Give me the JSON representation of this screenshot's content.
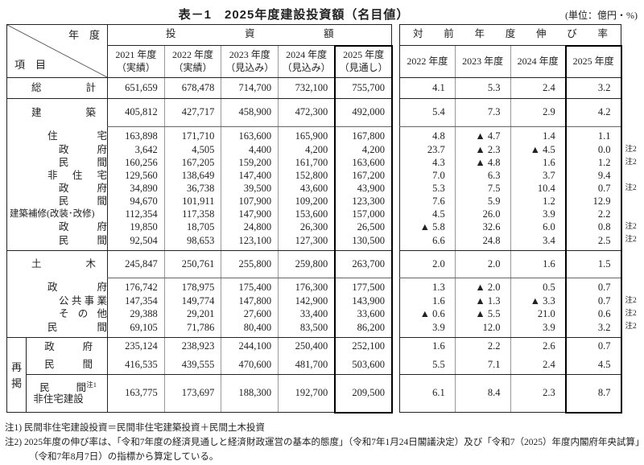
{
  "title": "表－1　2025年度建設投資額（名目値）",
  "unit_note": "(単位：億円・%)",
  "corner": {
    "top_right": "年　度",
    "bottom_left": "項　目"
  },
  "investment_table": {
    "span_header": "投資額",
    "columns": [
      {
        "year": "2021 年度",
        "status": "（実績）"
      },
      {
        "year": "2022 年度",
        "status": "（実績）"
      },
      {
        "year": "2023 年度",
        "status": "（見込み）"
      },
      {
        "year": "2024 年度",
        "status": "（見込み）"
      },
      {
        "year": "2025 年度",
        "status": "（見通し）"
      }
    ]
  },
  "growth_table": {
    "span_header": "対前年度伸び率",
    "columns": [
      "2022 年度",
      "2023 年度",
      "2024 年度",
      "2025 年度"
    ]
  },
  "regroup_header": "再掲",
  "rows": [
    {
      "label": "総計",
      "investment": [
        "651,659",
        "678,478",
        "714,700",
        "732,100",
        "755,700"
      ],
      "growth": [
        "4.1",
        "5.3",
        "2.4",
        "3.2"
      ],
      "note": ""
    },
    {
      "label": "建築",
      "investment": [
        "405,812",
        "427,717",
        "458,900",
        "472,300",
        "492,000"
      ],
      "growth": [
        "5.4",
        "7.3",
        "2.9",
        "4.2"
      ],
      "note": ""
    },
    {
      "label": "住宅",
      "investment": [
        "163,898",
        "171,710",
        "163,600",
        "165,900",
        "167,800"
      ],
      "growth": [
        "4.8",
        "▲ 4.7",
        "1.4",
        "1.1"
      ],
      "note": ""
    },
    {
      "label": "政府",
      "investment": [
        "3,642",
        "4,505",
        "4,400",
        "4,200",
        "4,200"
      ],
      "growth": [
        "23.7",
        "▲ 2.3",
        "▲ 4.5",
        "0.0"
      ],
      "note": "注2"
    },
    {
      "label": "民間",
      "investment": [
        "160,256",
        "167,205",
        "159,200",
        "161,700",
        "163,600"
      ],
      "growth": [
        "4.3",
        "▲ 4.8",
        "1.6",
        "1.2"
      ],
      "note": "注2"
    },
    {
      "label": "非住宅",
      "investment": [
        "129,560",
        "138,649",
        "147,400",
        "152,800",
        "167,200"
      ],
      "growth": [
        "7.0",
        "6.3",
        "3.7",
        "9.4"
      ],
      "note": ""
    },
    {
      "label": "政府",
      "investment": [
        "34,890",
        "36,738",
        "39,500",
        "43,600",
        "43,900"
      ],
      "growth": [
        "5.3",
        "7.5",
        "10.4",
        "0.7"
      ],
      "note": "注2"
    },
    {
      "label": "民間",
      "investment": [
        "94,670",
        "101,911",
        "107,900",
        "109,200",
        "123,300"
      ],
      "growth": [
        "7.6",
        "5.9",
        "1.2",
        "12.9"
      ],
      "note": ""
    },
    {
      "label": "建築補修(改装･改修)",
      "investment": [
        "112,354",
        "117,358",
        "147,900",
        "153,600",
        "157,000"
      ],
      "growth": [
        "4.5",
        "26.0",
        "3.9",
        "2.2"
      ],
      "note": ""
    },
    {
      "label": "政府",
      "investment": [
        "19,850",
        "18,705",
        "24,800",
        "26,300",
        "26,500"
      ],
      "growth": [
        "▲ 5.8",
        "32.6",
        "6.0",
        "0.8"
      ],
      "note": "注2"
    },
    {
      "label": "民間",
      "investment": [
        "92,504",
        "98,653",
        "123,100",
        "127,300",
        "130,500"
      ],
      "growth": [
        "6.6",
        "24.8",
        "3.4",
        "2.5"
      ],
      "note": "注2"
    },
    {
      "label": "土木",
      "investment": [
        "245,847",
        "250,761",
        "255,800",
        "259,800",
        "263,700"
      ],
      "growth": [
        "2.0",
        "2.0",
        "1.6",
        "1.5"
      ],
      "note": ""
    },
    {
      "label": "政府",
      "investment": [
        "176,742",
        "178,975",
        "175,400",
        "176,300",
        "177,500"
      ],
      "growth": [
        "1.3",
        "▲ 2.0",
        "0.5",
        "0.7"
      ],
      "note": ""
    },
    {
      "label": "公共事業",
      "investment": [
        "147,354",
        "149,774",
        "147,800",
        "142,900",
        "143,900"
      ],
      "growth": [
        "1.6",
        "▲ 1.3",
        "▲ 3.3",
        "0.7"
      ],
      "note": "注2"
    },
    {
      "label": "その他",
      "investment": [
        "29,388",
        "29,201",
        "27,600",
        "33,400",
        "33,600"
      ],
      "growth": [
        "▲ 0.6",
        "▲ 5.5",
        "21.0",
        "0.6"
      ],
      "note": "注2"
    },
    {
      "label": "民間",
      "investment": [
        "69,105",
        "71,786",
        "80,400",
        "83,500",
        "86,200"
      ],
      "growth": [
        "3.9",
        "12.0",
        "3.9",
        "3.2"
      ],
      "note": "注2"
    },
    {
      "label": "政府",
      "investment": [
        "235,124",
        "238,923",
        "244,100",
        "250,400",
        "252,100"
      ],
      "growth": [
        "1.6",
        "2.2",
        "2.6",
        "0.7"
      ],
      "note": ""
    },
    {
      "label": "民間",
      "investment": [
        "416,535",
        "439,555",
        "470,600",
        "481,700",
        "503,600"
      ],
      "growth": [
        "5.5",
        "7.1",
        "2.4",
        "4.5"
      ],
      "note": ""
    },
    {
      "label": "民間",
      "label_note": "注1",
      "label2": "非住宅建設",
      "investment": [
        "163,775",
        "173,697",
        "188,300",
        "192,700",
        "209,500"
      ],
      "growth": [
        "6.1",
        "8.4",
        "2.3",
        "8.7"
      ],
      "note": ""
    }
  ],
  "footnotes": [
    "注1) 民間非住宅建設投資＝民間非住宅建築投資＋民間土木投資",
    "注2) 2025年度の伸び率は、「令和7年度の経済見通しと経済財政運営の基本的態度」（令和7年1月24日閣議決定）及び「令和7（2025）年度内閣府年央試算」（令和7年8月7日）の指標から算定している。"
  ]
}
